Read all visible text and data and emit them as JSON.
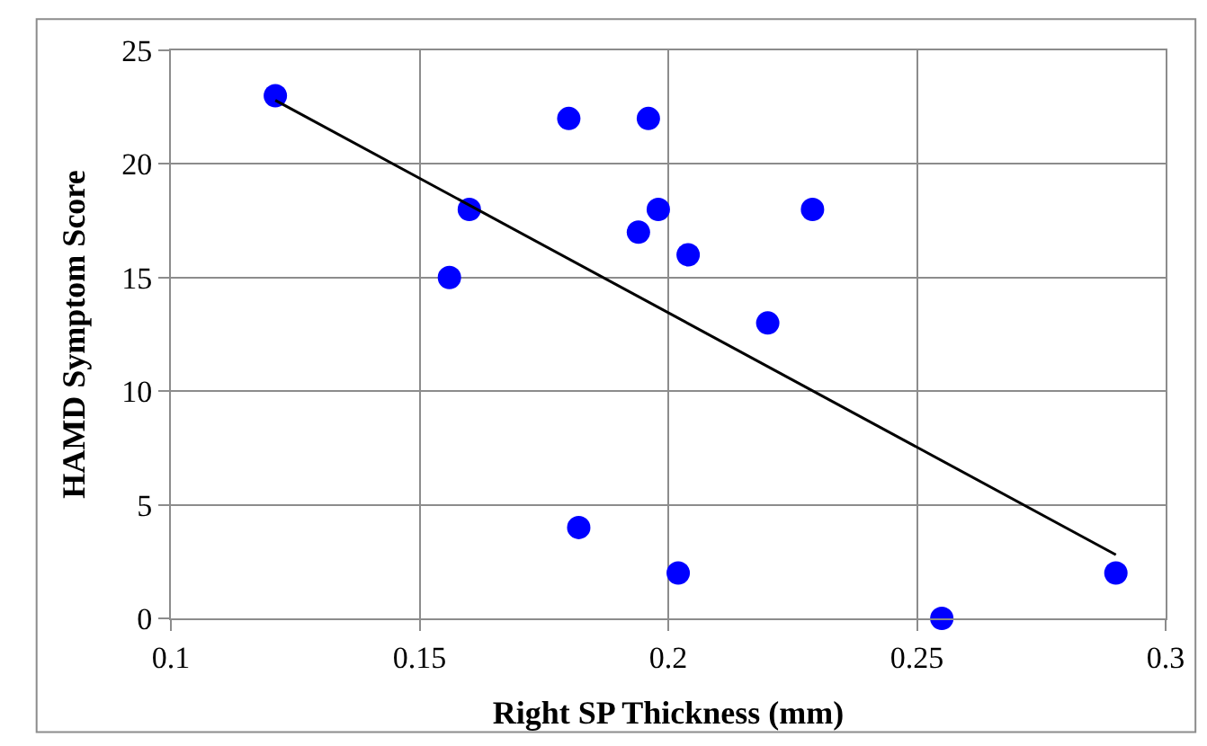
{
  "chart_data": {
    "type": "scatter",
    "xlabel": "Right SP Thickness (mm)",
    "ylabel": "HAMD Symptom Score",
    "xlim": [
      0.1,
      0.3
    ],
    "xticks": [
      0.1,
      0.15,
      0.2,
      0.25,
      0.3
    ],
    "ylim": [
      0,
      25
    ],
    "yticks": [
      0,
      5,
      10,
      15,
      20,
      25
    ],
    "grid": true,
    "marker": "circle",
    "series": [
      {
        "color": "#0000ff",
        "x": [
          0.121,
          0.16,
          0.156,
          0.18,
          0.182,
          0.196,
          0.198,
          0.194,
          0.204,
          0.202,
          0.22,
          0.229,
          0.255,
          0.29
        ],
        "values": [
          23,
          18,
          15,
          22,
          4,
          22,
          18,
          17,
          16,
          2,
          13,
          18,
          0,
          2
        ]
      },
      {
        "type": "line",
        "color": "#000000",
        "x": [
          0.121,
          0.29
        ],
        "values": [
          22.8,
          2.8
        ],
        "marker": "none"
      }
    ]
  }
}
